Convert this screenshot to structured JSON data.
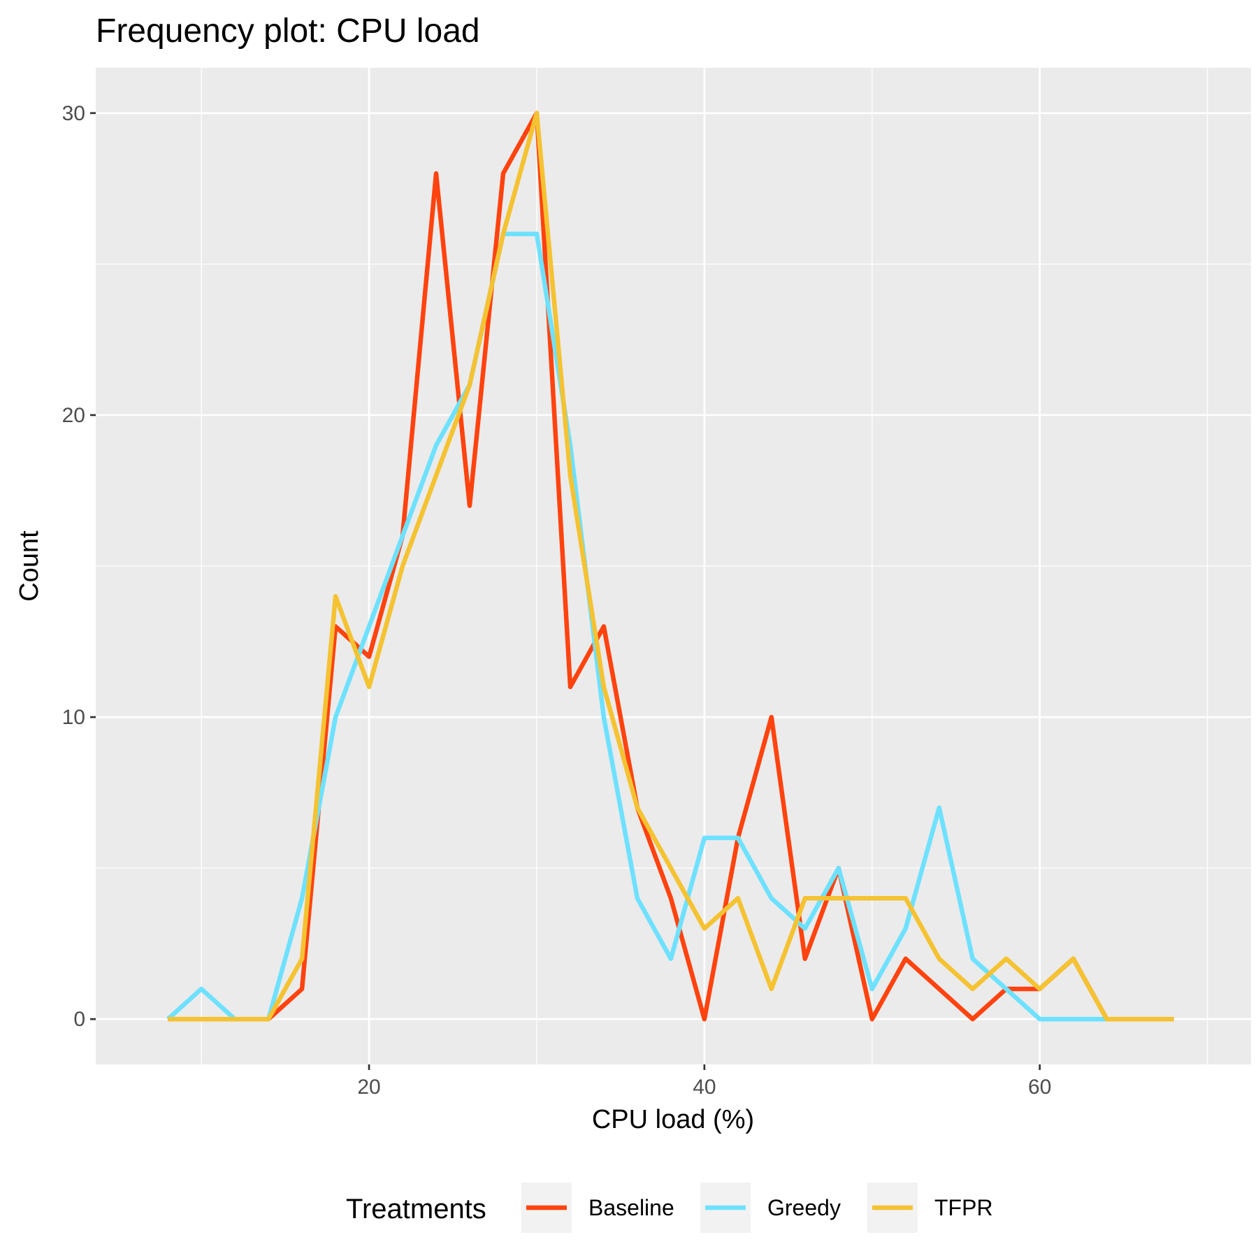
{
  "chart_data": {
    "type": "line",
    "title": "Frequency plot: CPU load",
    "xlabel": "CPU load (%)",
    "ylabel": "Count",
    "xlim": [
      3.7,
      72.6
    ],
    "ylim": [
      -1.5,
      31.5
    ],
    "x_ticks": [
      20,
      40,
      60
    ],
    "y_ticks": [
      0,
      10,
      20,
      30
    ],
    "grid": true,
    "legend": {
      "title": "Treatments",
      "position": "bottom",
      "entries": [
        "Baseline",
        "Greedy",
        "TFPR"
      ]
    },
    "x": [
      8,
      10,
      12,
      14,
      16,
      18,
      20,
      22,
      24,
      26,
      28,
      30,
      32,
      34,
      36,
      38,
      40,
      42,
      44,
      46,
      48,
      50,
      52,
      54,
      56,
      58,
      60,
      62,
      64,
      66,
      68
    ],
    "series": [
      {
        "name": "Baseline",
        "color": "#ff430f",
        "values": [
          0,
          0,
          0,
          0,
          1,
          13,
          12,
          16,
          28,
          17,
          28,
          30,
          11,
          13,
          7,
          4,
          0,
          6,
          10,
          2,
          5,
          0,
          2,
          1,
          0,
          1,
          1,
          2,
          0,
          0,
          0
        ]
      },
      {
        "name": "Greedy",
        "color": "#6ee1ff",
        "values": [
          0,
          1,
          0,
          0,
          4,
          10,
          13,
          16,
          19,
          21,
          26,
          26,
          19,
          10,
          4,
          2,
          6,
          6,
          4,
          3,
          5,
          1,
          3,
          7,
          2,
          1,
          0,
          0,
          0,
          0,
          0
        ]
      },
      {
        "name": "TFPR",
        "color": "#f5c232",
        "values": [
          0,
          0,
          0,
          0,
          2,
          14,
          11,
          15,
          18,
          21,
          26,
          30,
          18,
          11,
          7,
          5,
          3,
          4,
          1,
          4,
          4,
          4,
          4,
          2,
          1,
          2,
          1,
          2,
          0,
          0,
          0
        ]
      }
    ]
  }
}
